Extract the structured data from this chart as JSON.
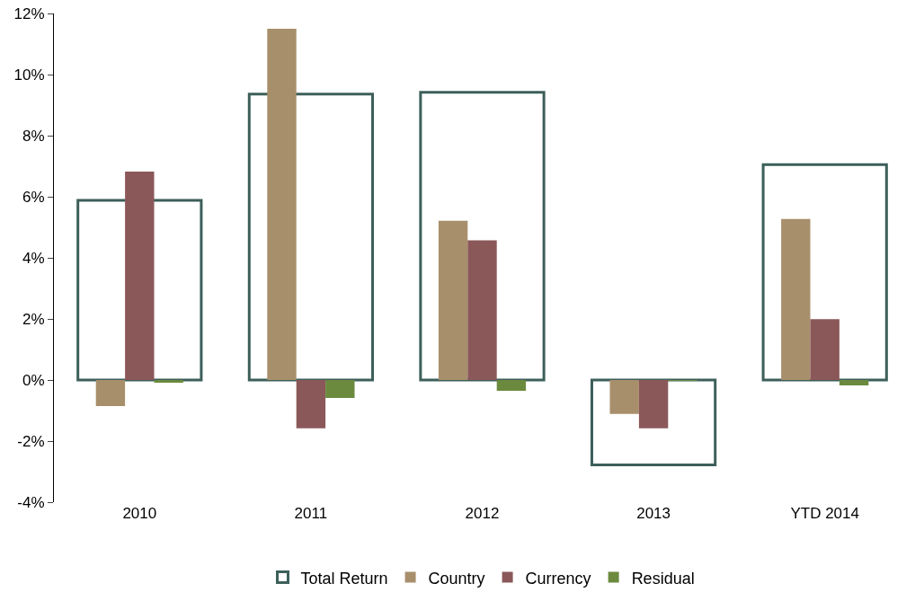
{
  "chart_data": {
    "type": "bar",
    "categories": [
      "2010",
      "2011",
      "2012",
      "2013",
      "YTD 2014"
    ],
    "series": [
      {
        "name": "Total Return",
        "color": "#3d5f5a",
        "line_style": "solid",
        "values": [
          5.88,
          9.36,
          9.42,
          -2.78,
          7.05
        ]
      },
      {
        "name": "Country",
        "color": "#a88f6c",
        "values": [
          -0.85,
          11.5,
          5.21,
          -1.11,
          5.27
        ]
      },
      {
        "name": "Currency",
        "color": "#8b5859",
        "values": [
          6.82,
          -1.58,
          4.57,
          -1.58,
          1.99
        ]
      },
      {
        "name": "Residual",
        "color": "#6b8a3e",
        "values": [
          -0.09,
          -0.59,
          -0.35,
          -0.02,
          -0.18
        ]
      }
    ],
    "ylim": [
      -4,
      12
    ],
    "yticks": [
      {
        "value": -4,
        "label": "-4%"
      },
      {
        "value": -2,
        "label": "-2%"
      },
      {
        "value": 0,
        "label": "0%"
      },
      {
        "value": 2,
        "label": "2%"
      },
      {
        "value": 4,
        "label": "4%"
      },
      {
        "value": 6,
        "label": "6%"
      },
      {
        "value": 8,
        "label": "8%"
      },
      {
        "value": 10,
        "label": "10%"
      },
      {
        "value": 12,
        "label": "12%"
      }
    ],
    "grid": false,
    "legend": "bottom"
  }
}
